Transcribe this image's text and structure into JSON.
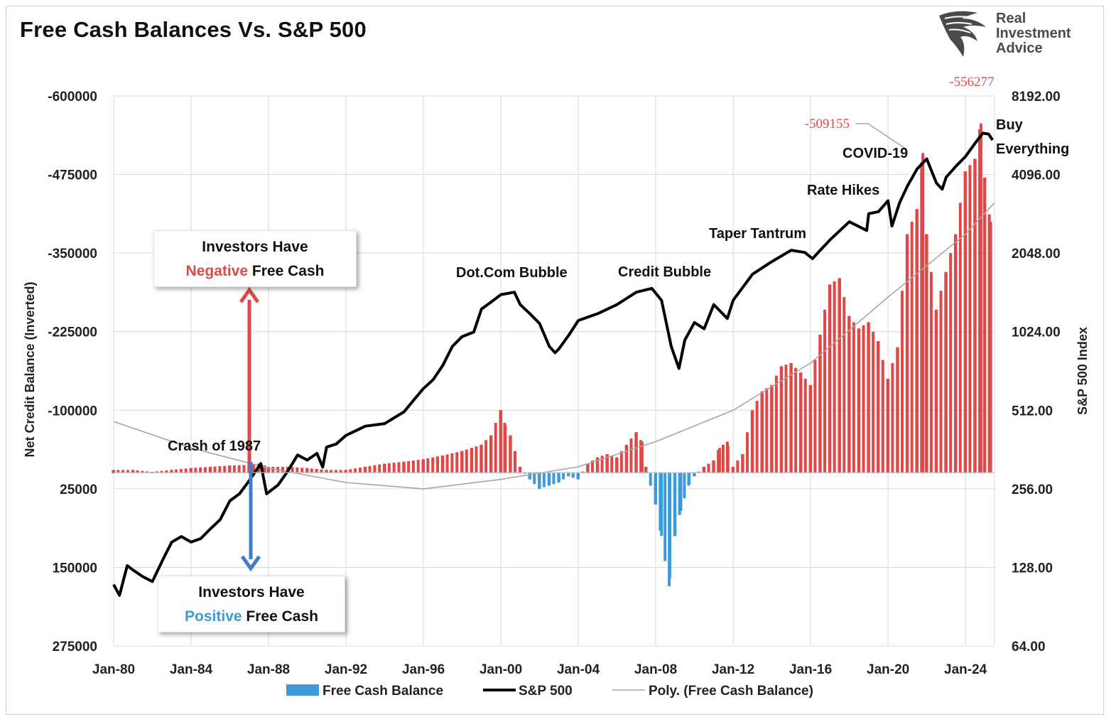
{
  "title": "Free Cash Balances Vs. S&P 500",
  "logo": {
    "line1": "Real",
    "line2": "Investment",
    "line3": "Advice"
  },
  "callouts": {
    "negative": {
      "line1": "Investors Have",
      "highlight": "Negative",
      "rest": " Free Cash"
    },
    "positive": {
      "line1": "Investors Have",
      "highlight": "Positive",
      "rest": " Free Cash"
    }
  },
  "colors": {
    "negative_cash": "#e04848",
    "positive_cash": "#3d9ad9",
    "sp500": "#000000",
    "poly": "#a6a6a6",
    "grid": "#d9d9d9",
    "arrow_red": "#e04848",
    "arrow_blue": "#3d7fc4"
  },
  "chart_data": {
    "type": "bar",
    "ylabel_left": "Net Credit Balance (Inverted)",
    "ylabel_right": "S&P 500 Index",
    "y_left_ticks": [
      "-600000",
      "-475000",
      "-350000",
      "-225000",
      "-100000",
      "25000",
      "150000",
      "275000"
    ],
    "y_left_range": [
      -600000,
      275000
    ],
    "y_left_inverted": true,
    "y_right_ticks": [
      "8192.00",
      "4096.00",
      "2048.00",
      "1024.00",
      "512.00",
      "256.00",
      "128.00",
      "64.00"
    ],
    "y_right_range": [
      64,
      8192
    ],
    "y_right_scale": "log2",
    "x_ticks": [
      "Jan-80",
      "Jan-84",
      "Jan-88",
      "Jan-92",
      "Jan-96",
      "Jan-00",
      "Jan-04",
      "Jan-08",
      "Jan-12",
      "Jan-16",
      "Jan-20",
      "Jan-24"
    ],
    "x_range": [
      1980.0,
      2025.5
    ],
    "legend": [
      "Free Cash Balance",
      "S&P 500",
      "Poly. (Free Cash Balance)"
    ],
    "legend_position": "bottom",
    "grid": true,
    "annotations": [
      {
        "text": "-556277",
        "color": "#e04848"
      },
      {
        "text": "-509155",
        "color": "#e04848"
      },
      {
        "text": "Buy"
      },
      {
        "text": "Everything"
      },
      {
        "text": "COVID-19"
      },
      {
        "text": "Rate Hikes"
      },
      {
        "text": "Taper Tantrum"
      },
      {
        "text": "Dot.Com Bubble"
      },
      {
        "text": "Credit Bubble"
      },
      {
        "text": "Crash of 1987"
      }
    ],
    "series": [
      {
        "name": "Free Cash Balance",
        "type": "bar",
        "x": [
          1980.0,
          1981.0,
          1982.0,
          1983.0,
          1984.0,
          1985.0,
          1986.0,
          1987.0,
          1987.5,
          1987.8,
          1988.0,
          1989.0,
          1990.0,
          1991.0,
          1992.0,
          1993.0,
          1994.0,
          1995.0,
          1996.0,
          1997.0,
          1998.0,
          1998.5,
          1999.0,
          1999.5,
          2000.0,
          2000.2,
          2000.5,
          2001.0,
          2001.5,
          2002.0,
          2002.5,
          2003.0,
          2003.5,
          2004.0,
          2004.5,
          2005.0,
          2005.5,
          2006.0,
          2006.5,
          2007.0,
          2007.3,
          2007.5,
          2008.0,
          2008.3,
          2008.7,
          2009.0,
          2009.3,
          2009.7,
          2010.0,
          2010.5,
          2011.0,
          2011.3,
          2011.7,
          2012.0,
          2012.5,
          2013.0,
          2013.5,
          2014.0,
          2014.5,
          2015.0,
          2015.5,
          2016.0,
          2016.5,
          2017.0,
          2017.5,
          2018.0,
          2018.5,
          2019.0,
          2019.5,
          2020.0,
          2020.5,
          2021.0,
          2021.5,
          2021.8,
          2022.0,
          2022.5,
          2023.0,
          2023.5,
          2024.0,
          2024.5,
          2024.8,
          2025.0,
          2025.3
        ],
        "values": [
          -5000,
          -5000,
          -2000,
          -5000,
          -8000,
          -10000,
          -12000,
          -13000,
          -15000,
          -12000,
          -10000,
          -10000,
          -8000,
          -5000,
          -5000,
          -10000,
          -15000,
          -18000,
          -22000,
          -28000,
          -35000,
          -40000,
          -45000,
          -60000,
          -100000,
          -80000,
          -60000,
          -10000,
          10000,
          25000,
          20000,
          15000,
          5000,
          10000,
          -15000,
          -25000,
          -30000,
          -25000,
          -45000,
          -65000,
          -50000,
          -10000,
          50000,
          100000,
          180000,
          100000,
          60000,
          20000,
          5000,
          -10000,
          -20000,
          -40000,
          -50000,
          -10000,
          -30000,
          -100000,
          -130000,
          -140000,
          -170000,
          -175000,
          -160000,
          -140000,
          -220000,
          -300000,
          -310000,
          -250000,
          -230000,
          -240000,
          -210000,
          -150000,
          -200000,
          -380000,
          -420000,
          -509155,
          -380000,
          -260000,
          -320000,
          -380000,
          -480000,
          -500000,
          -556277,
          -470000,
          -400000
        ]
      },
      {
        "name": "S&P 500",
        "type": "line",
        "x": [
          1980.0,
          1980.3,
          1980.7,
          1981.0,
          1981.5,
          1982.0,
          1982.6,
          1983.0,
          1983.5,
          1984.0,
          1984.5,
          1985.0,
          1985.5,
          1986.0,
          1986.5,
          1987.0,
          1987.6,
          1987.9,
          1988.5,
          1989.0,
          1989.5,
          1990.0,
          1990.5,
          1990.8,
          1991.0,
          1991.5,
          1992.0,
          1993.0,
          1994.0,
          1995.0,
          1995.5,
          1996.0,
          1996.5,
          1997.0,
          1997.5,
          1998.0,
          1998.6,
          1999.0,
          1999.5,
          2000.0,
          2000.7,
          2001.0,
          2001.5,
          2002.0,
          2002.5,
          2002.8,
          2003.0,
          2003.5,
          2004.0,
          2005.0,
          2006.0,
          2007.0,
          2007.8,
          2008.3,
          2008.8,
          2009.2,
          2009.5,
          2010.0,
          2010.5,
          2011.0,
          2011.7,
          2012.0,
          2013.0,
          2014.0,
          2015.0,
          2015.7,
          2016.1,
          2016.5,
          2017.0,
          2018.0,
          2018.9,
          2019.0,
          2019.5,
          2020.0,
          2020.2,
          2020.6,
          2021.0,
          2021.5,
          2022.0,
          2022.5,
          2022.8,
          2023.0,
          2023.5,
          2024.0,
          2024.5,
          2024.9,
          2025.2,
          2025.4
        ],
        "values": [
          110,
          100,
          130,
          125,
          118,
          113,
          140,
          160,
          168,
          160,
          165,
          180,
          195,
          230,
          245,
          275,
          320,
          245,
          265,
          300,
          345,
          330,
          350,
          310,
          370,
          380,
          410,
          445,
          455,
          505,
          560,
          620,
          670,
          760,
          900,
          980,
          1020,
          1250,
          1330,
          1420,
          1450,
          1300,
          1200,
          1100,
          900,
          850,
          880,
          990,
          1130,
          1200,
          1300,
          1450,
          1500,
          1350,
          900,
          740,
          950,
          1110,
          1050,
          1300,
          1150,
          1350,
          1700,
          1900,
          2100,
          2060,
          1950,
          2100,
          2300,
          2700,
          2500,
          2900,
          2950,
          3250,
          2600,
          3200,
          3700,
          4300,
          4700,
          3800,
          3600,
          4000,
          4400,
          4800,
          5400,
          5900,
          5850,
          5550
        ]
      },
      {
        "name": "Poly. (Free Cash Balance)",
        "type": "line",
        "x": [
          1980,
          1984,
          1988,
          1992,
          1996,
          2000,
          2004,
          2008,
          2012,
          2016,
          2020,
          2024,
          2025.5
        ],
        "values": [
          -82000,
          -40000,
          -8000,
          15000,
          25000,
          10000,
          -10000,
          -50000,
          -100000,
          -175000,
          -280000,
          -380000,
          -430000
        ]
      }
    ]
  }
}
